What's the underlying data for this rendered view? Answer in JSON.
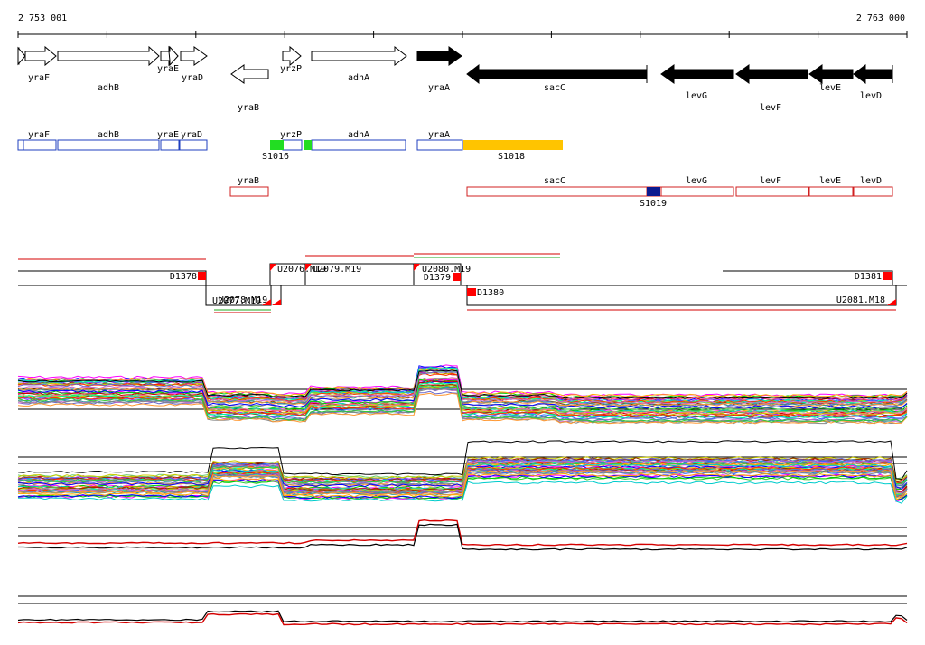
{
  "ruler": {
    "start_label": "2 753 001",
    "end_label": "2 763 000"
  },
  "colors": {
    "forward_gene_fill": "#ffffff",
    "reverse_gene_fill": "#000000",
    "forward_segment": "#1f3fbf",
    "reverse_segment": "#d02020",
    "segment_S1016": "#22dd22",
    "segment_S1018": "#ffc400",
    "segment_S1019": "#0b1a90",
    "marker": "#ff0000",
    "signal_red": "#d40000"
  },
  "genes_forward": [
    {
      "name": "yraF"
    },
    {
      "name": "adhB"
    },
    {
      "name": "yraE"
    },
    {
      "name": "yraD"
    },
    {
      "name": "yrzP"
    },
    {
      "name": "adhA"
    }
  ],
  "genes_reverse": [
    {
      "name": "yraB"
    },
    {
      "name": "yraA"
    },
    {
      "name": "sacC"
    },
    {
      "name": "levG"
    },
    {
      "name": "levF"
    },
    {
      "name": "levE"
    },
    {
      "name": "levD"
    }
  ],
  "segments_forward": [
    "yraF",
    "adhB",
    "yraE",
    "yraD",
    "yrzP",
    "adhA",
    "yraA"
  ],
  "segments_special": [
    "S1016",
    "S1018"
  ],
  "segments_reverse": [
    "yraB",
    "sacC",
    "levG",
    "levF",
    "levE",
    "levD"
  ],
  "segment_special_reverse": "S1019",
  "features": {
    "D1378": "D1378",
    "D1381": "D1381",
    "D1379": "D1379",
    "D1380": "D1380",
    "U2076_M19": "U2076.M19",
    "U2079_M19": "U2079.M19",
    "U2080_M19": "U2080.M19",
    "U2077_M19": "U2077.M19",
    "U2078_M19": "U2078.M19",
    "U2081_M18": "U2081.M18"
  }
}
